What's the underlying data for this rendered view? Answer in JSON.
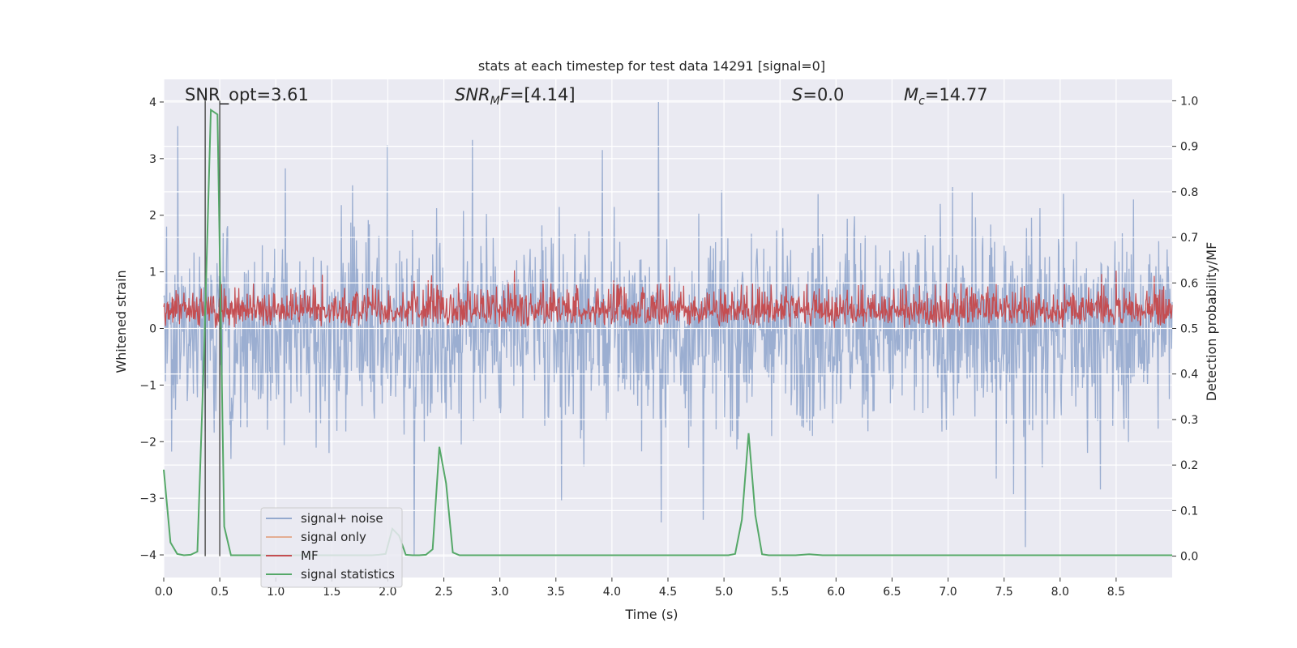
{
  "chart_data": {
    "type": "line",
    "title": "stats at each timestep for test data 14291 [signal=0]",
    "xlabel": "Time (s)",
    "ylabel": "Whitened strain",
    "y2label": "Detection probability/MF",
    "xlim": [
      0,
      9.0
    ],
    "ylim": [
      -4.4,
      4.4
    ],
    "y2lim": [
      -0.047,
      1.047
    ],
    "xticks": [
      0.0,
      0.5,
      1.0,
      1.5,
      2.0,
      2.5,
      3.0,
      3.5,
      4.0,
      4.5,
      5.0,
      5.5,
      6.0,
      6.5,
      7.0,
      7.5,
      8.0,
      8.5
    ],
    "xtick_labels": [
      "0.0",
      "0.5",
      "1.0",
      "1.5",
      "2.0",
      "2.5",
      "3.0",
      "3.5",
      "4.0",
      "4.5",
      "5.0",
      "5.5",
      "6.0",
      "6.5",
      "7.0",
      "7.5",
      "8.0",
      "8.5"
    ],
    "yticks": [
      -4,
      -3,
      -2,
      -1,
      0,
      1,
      2,
      3,
      4
    ],
    "ytick_labels": [
      "−4",
      "−3",
      "−2",
      "−1",
      "0",
      "1",
      "2",
      "3",
      "4"
    ],
    "y2ticks": [
      0.0,
      0.1,
      0.2,
      0.3,
      0.4,
      0.5,
      0.6,
      0.7,
      0.8,
      0.9,
      1.0
    ],
    "y2tick_labels": [
      "0.0",
      "0.1",
      "0.2",
      "0.3",
      "0.4",
      "0.5",
      "0.6",
      "0.7",
      "0.8",
      "0.9",
      "1.0"
    ],
    "grid": true,
    "legend_position": "lower-left",
    "series": [
      {
        "name": "signal+ noise",
        "axis": "left",
        "color": "#4c72b0",
        "style": "dense-noise",
        "sample_rate": 200,
        "envelope_abs_max": 4.0
      },
      {
        "name": "signal only",
        "axis": "left",
        "color": "#dd8452",
        "style": "line",
        "x": [],
        "y": []
      },
      {
        "name": "MF",
        "axis": "right",
        "color": "#c44e52",
        "style": "dense-noise",
        "sample_rate": 200,
        "baseline": 0.5,
        "envelope_max": 0.64
      },
      {
        "name": "signal statistics",
        "axis": "right",
        "color": "#55a868",
        "style": "line",
        "x": [
          0.0,
          0.06,
          0.12,
          0.18,
          0.24,
          0.3,
          0.36,
          0.42,
          0.48,
          0.54,
          0.6,
          0.66,
          0.72,
          0.78,
          0.84,
          0.9,
          0.96,
          1.02,
          1.08,
          1.14,
          1.2,
          1.26,
          1.32,
          1.38,
          1.44,
          1.5,
          1.56,
          1.62,
          1.68,
          1.74,
          1.8,
          1.86,
          1.92,
          1.98,
          2.04,
          2.1,
          2.16,
          2.22,
          2.28,
          2.34,
          2.4,
          2.46,
          2.52,
          2.58,
          2.64,
          2.7,
          2.76,
          2.82,
          2.88,
          2.94,
          3.0,
          3.5,
          4.0,
          4.5,
          5.0,
          5.04,
          5.1,
          5.16,
          5.22,
          5.28,
          5.34,
          5.4,
          5.46,
          5.52,
          5.58,
          5.64,
          5.7,
          5.76,
          5.82,
          5.88,
          5.94,
          6.0,
          6.5,
          7.0,
          7.5,
          8.0,
          8.5,
          9.0
        ],
        "y": [
          0.19,
          0.03,
          0.005,
          0.002,
          0.003,
          0.01,
          0.45,
          0.98,
          0.97,
          0.065,
          0.002,
          0.002,
          0.002,
          0.002,
          0.002,
          0.002,
          0.002,
          0.002,
          0.002,
          0.002,
          0.002,
          0.002,
          0.002,
          0.002,
          0.002,
          0.002,
          0.002,
          0.002,
          0.002,
          0.002,
          0.002,
          0.002,
          0.003,
          0.005,
          0.06,
          0.045,
          0.003,
          0.002,
          0.002,
          0.003,
          0.015,
          0.24,
          0.16,
          0.008,
          0.002,
          0.002,
          0.002,
          0.002,
          0.002,
          0.002,
          0.002,
          0.002,
          0.002,
          0.002,
          0.002,
          0.002,
          0.005,
          0.08,
          0.27,
          0.09,
          0.004,
          0.002,
          0.002,
          0.002,
          0.002,
          0.002,
          0.003,
          0.004,
          0.003,
          0.002,
          0.002,
          0.002,
          0.002,
          0.002,
          0.002,
          0.002,
          0.002,
          0.002
        ]
      }
    ],
    "vlines": [
      0.37,
      0.5
    ],
    "vline_color": "#555555",
    "annotations": {
      "snr_opt": "SNR_opt=3.61",
      "snr_mf_prefix": "SNR",
      "snr_mf_sub": "M",
      "snr_mf_suffix": "F=[4.14]",
      "s_italic": "S",
      "s_value": "=0.0",
      "mc_italic": "M",
      "mc_sub": "c",
      "mc_value": "=14.77"
    },
    "style": {
      "axes_bg": "#eaeaf2",
      "grid_color": "#ffffff"
    }
  }
}
